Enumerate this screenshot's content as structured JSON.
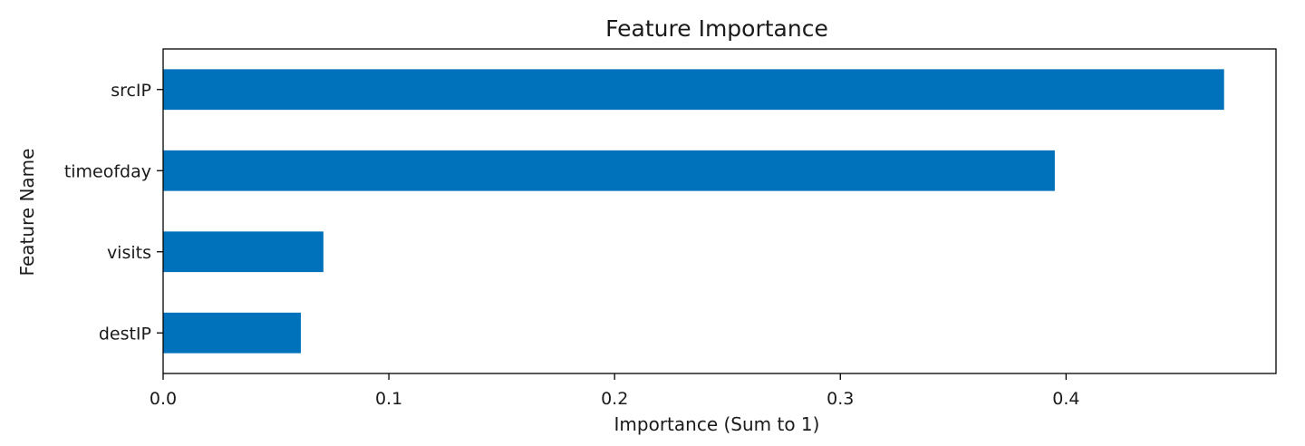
{
  "chart_data": {
    "type": "bar",
    "orientation": "horizontal",
    "title": "Feature Importance",
    "xlabel": "Importance (Sum to 1)",
    "ylabel": "Feature Name",
    "categories": [
      "srcIP",
      "timeofday",
      "visits",
      "destIP"
    ],
    "values": [
      0.47,
      0.395,
      0.071,
      0.061
    ],
    "xlim": [
      0.0,
      0.493
    ],
    "xticks": [
      "0.0",
      "0.1",
      "0.2",
      "0.3",
      "0.4"
    ],
    "xtick_values": [
      0.0,
      0.1,
      0.2,
      0.3,
      0.4
    ],
    "grid": false,
    "legend": "none",
    "bar_color": "#0072BB"
  }
}
